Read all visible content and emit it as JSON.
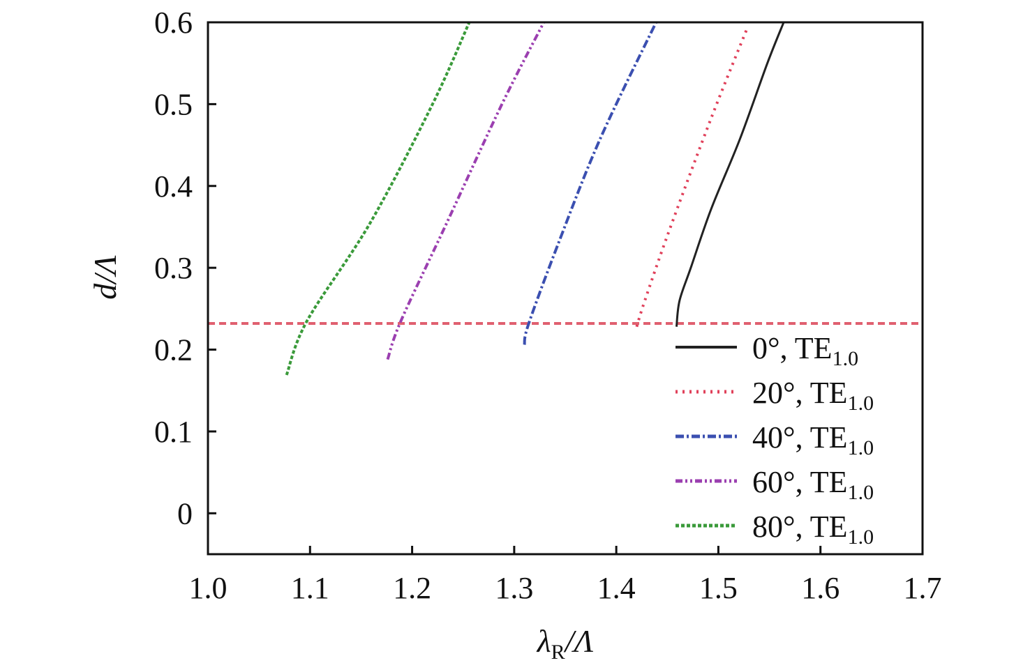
{
  "chart_data": {
    "type": "line",
    "title": "",
    "xlabel": {
      "main": "λ",
      "sub": "R",
      "rest": "/Λ"
    },
    "ylabel": "d/Λ",
    "xlim": [
      1.0,
      1.7
    ],
    "ylim": [
      -0.05,
      0.6
    ],
    "xticks": [
      "1.0",
      "1.1",
      "1.2",
      "1.3",
      "1.4",
      "1.5",
      "1.6",
      "1.7"
    ],
    "yticks": [
      "0",
      "0.1",
      "0.2",
      "0.3",
      "0.4",
      "0.5",
      "0.6"
    ],
    "grid": false,
    "legend_position": "bottom-right",
    "reference_line": {
      "y": 0.232,
      "color": "#e06070",
      "style": "dashed"
    },
    "series": [
      {
        "name": "0°, TE",
        "sub": "1.0",
        "color": "#222222",
        "dash": "solid",
        "x": [
          1.459,
          1.462,
          1.473,
          1.493,
          1.521,
          1.548,
          1.564
        ],
        "y": [
          0.228,
          0.26,
          0.3,
          0.372,
          0.457,
          0.55,
          0.6
        ]
      },
      {
        "name": "20°, TE",
        "sub": "1.0",
        "color": "#e0405a",
        "dash": "dot",
        "x": [
          1.42,
          1.428,
          1.452,
          1.493,
          1.528
        ],
        "y": [
          0.228,
          0.26,
          0.346,
          0.483,
          0.592
        ]
      },
      {
        "name": "40°, TE",
        "sub": "1.0",
        "color": "#3b4fb0",
        "dash": "dashdot",
        "x": [
          1.31,
          1.314,
          1.343,
          1.384,
          1.439
        ],
        "y": [
          0.206,
          0.231,
          0.329,
          0.457,
          0.6
        ]
      },
      {
        "name": "60°, TE",
        "sub": "1.0",
        "color": "#9b3fb0",
        "dash": "dashdotdot",
        "x": [
          1.176,
          1.189,
          1.234,
          1.288,
          1.329
        ],
        "y": [
          0.188,
          0.235,
          0.355,
          0.5,
          0.6
        ]
      },
      {
        "name": "80°, TE",
        "sub": "1.0",
        "color": "#3a9a3a",
        "dash": "shortdash",
        "x": [
          1.077,
          1.097,
          1.159,
          1.22,
          1.256
        ],
        "y": [
          0.169,
          0.235,
          0.355,
          0.5,
          0.6
        ]
      }
    ]
  }
}
